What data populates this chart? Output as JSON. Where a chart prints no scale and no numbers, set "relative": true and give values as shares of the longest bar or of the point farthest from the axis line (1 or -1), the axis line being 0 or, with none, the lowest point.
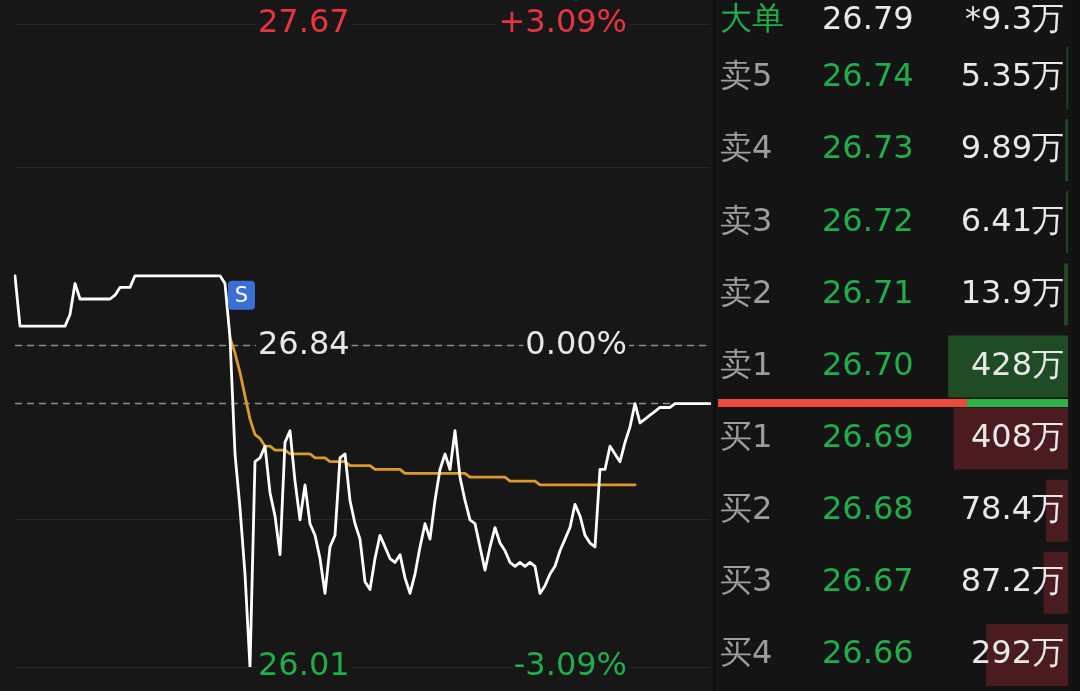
{
  "chart_data": [
    {
      "type": "line",
      "categories": [
        null,
        null,
        null,
        null,
        null,
        null,
        null,
        null,
        null,
        null,
        null,
        null,
        null,
        null,
        null,
        null,
        null,
        null,
        null,
        null,
        null,
        null,
        null,
        null,
        null,
        null,
        null,
        null,
        null,
        null,
        null,
        null,
        null,
        null,
        null,
        null,
        null,
        null,
        null,
        null,
        null,
        null,
        null,
        null,
        null,
        null,
        null,
        null,
        null,
        null,
        null,
        null,
        null,
        null,
        null,
        null,
        null,
        null,
        null,
        null,
        null,
        null,
        null,
        null,
        null,
        null,
        null,
        null,
        null,
        null,
        null,
        null,
        null,
        null,
        null,
        null,
        null,
        null,
        null,
        null,
        null,
        null,
        null,
        null,
        null,
        null,
        null,
        null,
        null,
        null,
        null,
        null,
        null,
        null,
        null,
        null,
        null,
        null,
        null,
        null,
        null,
        null,
        null,
        null,
        null,
        null,
        null,
        null,
        null,
        null,
        null,
        null,
        null,
        null,
        null,
        null,
        null,
        null,
        null,
        null,
        null,
        null,
        null,
        null,
        null,
        null,
        null,
        null,
        null,
        null,
        null,
        null,
        null,
        null,
        null,
        null,
        null,
        null,
        null,
        null
      ],
      "series": [
        {
          "color": "#ffffff",
          "values": [
            27.02,
            26.89,
            26.89,
            26.89,
            26.89,
            26.89,
            26.89,
            26.89,
            26.89,
            26.89,
            26.89,
            26.92,
            27.0,
            26.96,
            26.96,
            26.96,
            26.96,
            26.96,
            26.96,
            26.96,
            26.97,
            26.99,
            26.99,
            26.99,
            27.02,
            27.02,
            27.02,
            27.02,
            27.02,
            27.02,
            27.02,
            27.02,
            27.02,
            27.02,
            27.02,
            27.02,
            27.02,
            27.02,
            27.02,
            27.02,
            27.02,
            27.02,
            27.0,
            26.86,
            26.56,
            26.42,
            26.25,
            26.01,
            26.54,
            26.55,
            26.58,
            26.46,
            26.4,
            26.3,
            26.59,
            26.62,
            26.49,
            26.39,
            26.48,
            26.38,
            26.35,
            26.29,
            26.2,
            26.32,
            26.35,
            26.55,
            26.56,
            26.44,
            26.38,
            26.34,
            26.23,
            26.21,
            26.29,
            26.35,
            26.32,
            26.29,
            26.28,
            26.3,
            26.24,
            26.2,
            26.25,
            26.32,
            26.38,
            26.34,
            26.44,
            26.52,
            26.56,
            26.52,
            26.62,
            26.5,
            26.44,
            26.39,
            26.38,
            26.32,
            26.26,
            26.32,
            26.37,
            26.33,
            26.31,
            26.28,
            26.27,
            26.28,
            26.27,
            26.28,
            26.27,
            26.2,
            26.22,
            26.25,
            26.27,
            26.31,
            26.34,
            26.37,
            26.43,
            26.4,
            26.35,
            26.33,
            26.32,
            26.52,
            26.52,
            26.58,
            26.56,
            26.54,
            26.59,
            26.63,
            26.69,
            26.64,
            26.65,
            26.66,
            26.67,
            26.68,
            26.68,
            26.68,
            26.69,
            26.69,
            26.69,
            26.69,
            26.69,
            26.69,
            26.69,
            26.69
          ]
        },
        {
          "color": "#dd9a2c",
          "values": [
            null,
            null,
            null,
            null,
            null,
            null,
            null,
            null,
            null,
            null,
            null,
            null,
            null,
            null,
            null,
            null,
            null,
            null,
            null,
            null,
            null,
            null,
            null,
            null,
            null,
            null,
            null,
            null,
            null,
            null,
            null,
            null,
            null,
            null,
            null,
            null,
            null,
            null,
            null,
            null,
            null,
            null,
            null,
            26.86,
            26.82,
            26.77,
            26.71,
            26.65,
            26.61,
            26.6,
            26.58,
            26.58,
            26.57,
            26.57,
            26.57,
            26.56,
            26.56,
            26.56,
            26.56,
            26.56,
            26.55,
            26.55,
            26.55,
            26.54,
            26.54,
            26.54,
            26.54,
            26.53,
            26.53,
            26.53,
            26.53,
            26.53,
            26.52,
            26.52,
            26.52,
            26.52,
            26.52,
            26.52,
            26.51,
            26.51,
            26.51,
            26.51,
            26.51,
            26.51,
            26.51,
            26.51,
            26.51,
            26.51,
            26.51,
            26.51,
            26.51,
            26.5,
            26.5,
            26.5,
            26.5,
            26.5,
            26.5,
            26.5,
            26.5,
            26.49,
            26.49,
            26.49,
            26.49,
            26.49,
            26.49,
            26.48,
            26.48,
            26.48,
            26.48,
            26.48,
            26.48,
            26.48,
            26.48,
            26.48,
            26.48,
            26.48,
            26.48,
            26.48,
            26.48,
            26.48,
            26.48,
            26.48,
            26.48,
            26.48,
            26.48,
            null,
            null,
            null,
            null,
            null,
            null,
            null,
            null,
            null,
            null,
            null,
            null,
            null,
            null,
            null
          ]
        }
      ],
      "ylim": [
        26.01,
        27.67
      ],
      "yticks": [
        27.67,
        {
          "value": 27.3,
          "label": null
        },
        26.84,
        {
          "value": 26.39,
          "label": null
        },
        26.01
      ],
      "y2lim": [
        -3.09,
        3.09
      ],
      "y2ticks": [
        {
          "value": 3.09,
          "label": "+3.09%"
        },
        {
          "value": 0,
          "label": "0.00%"
        },
        {
          "value": -3.09,
          "label": "-3.09%"
        }
      ],
      "grid": "y",
      "ref_lines": [
        {
          "axis": "y",
          "value": 26.84,
          "color": "#8c8c8c",
          "line_style": "dashed"
        },
        {
          "axis": "y",
          "value": 26.69,
          "color": "#8c8c8c",
          "line_style": "dashed"
        }
      ],
      "annotations": [
        "S"
      ],
      "tick_labels": "y"
    },
    {
      "type": "bar",
      "orientation": "horizontal",
      "categories": [
        "卖5",
        "卖4",
        "卖3",
        "卖2",
        "卖1",
        "买1",
        "买2",
        "买3",
        "买4"
      ],
      "values": [
        5.35,
        9.89,
        6.41,
        13.9,
        428,
        408,
        78.4,
        87.2,
        292
      ],
      "value_labels": [
        "5.35万",
        "9.89万",
        "6.41万",
        "13.9万",
        "428万",
        "408万",
        "78.4万",
        "87.2万",
        "292万"
      ],
      "colors": [
        "#1f4c25",
        "#1f4c25",
        "#1f4c25",
        "#1f4c25",
        "#1f4c25",
        "#4a1c1f",
        "#4a1c1f",
        "#4a1c1f",
        "#4a1c1f"
      ],
      "xlim": [
        1250,
        0
      ],
      "tick_labels": "y",
      "annotations": [
        "大单",
        "26.79",
        "*9.3万",
        "26.74",
        "26.73",
        "26.72",
        "26.71",
        "26.70",
        "26.69",
        "26.68",
        "26.67",
        "26.66"
      ]
    },
    {
      "type": "bar",
      "orientation": "horizontal",
      "stacked": true,
      "relative": true,
      "categories": [
        null
      ],
      "series": [
        {
          "color": "#ec4a3c",
          "values": [
            0.71
          ]
        },
        {
          "color": "#2fb24a",
          "values": [
            0.29
          ]
        }
      ],
      "tick_labels": false
    }
  ]
}
